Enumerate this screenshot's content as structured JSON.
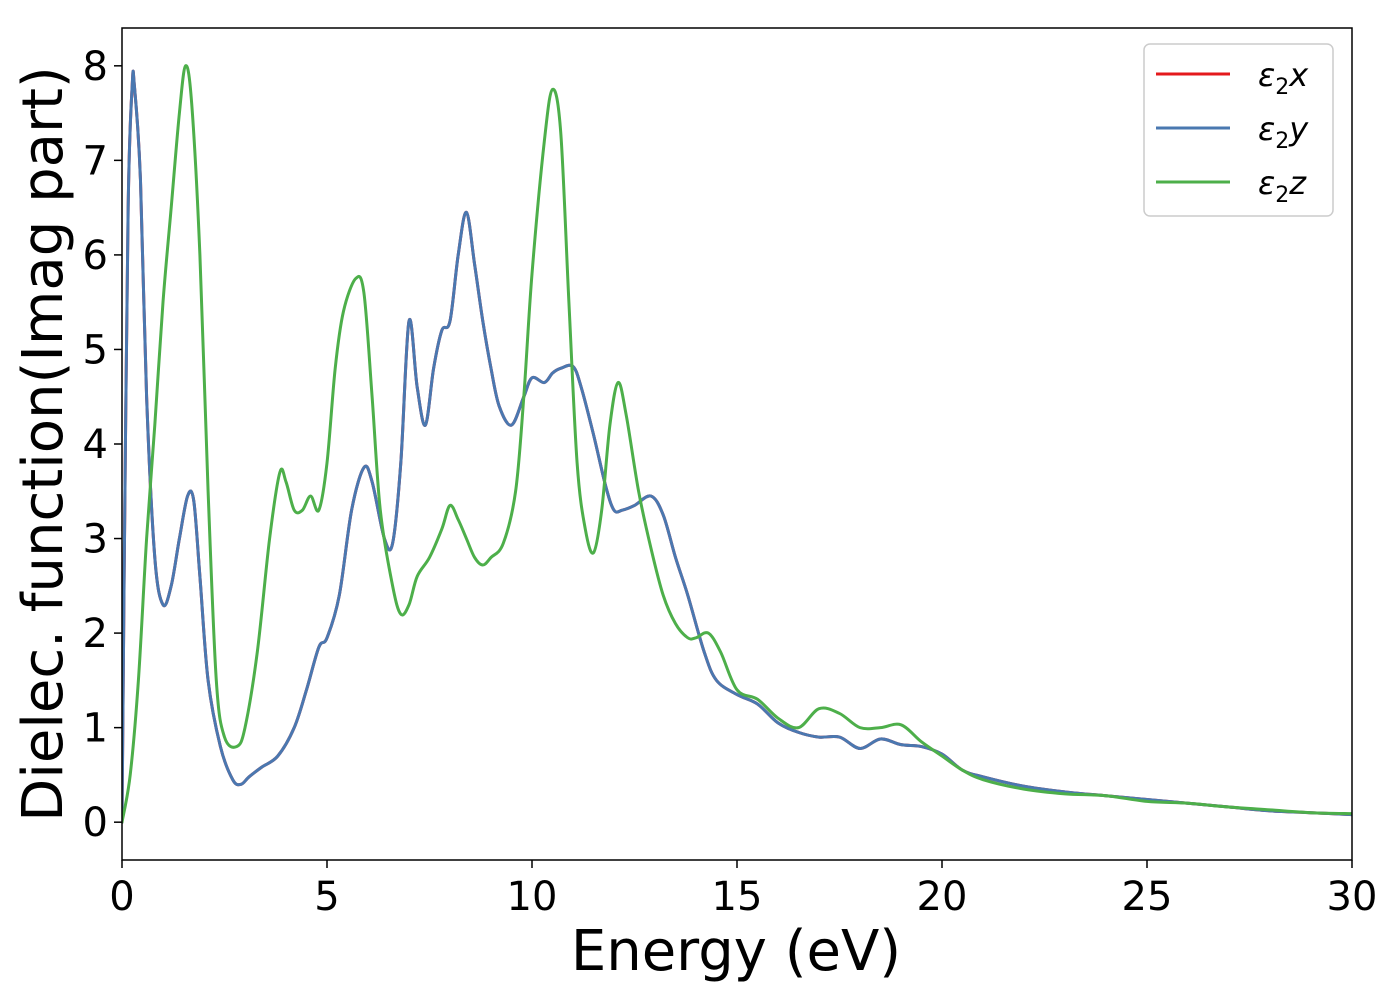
{
  "chart_data": {
    "type": "line",
    "title": "",
    "xlabel": "Energy (eV)",
    "ylabel": "Dielec. function(Imag part)",
    "xlim": [
      0,
      30
    ],
    "ylim": [
      -0.4,
      8.4
    ],
    "xticks": [
      0,
      5,
      10,
      15,
      20,
      25,
      30
    ],
    "yticks": [
      0,
      1,
      2,
      3,
      4,
      5,
      6,
      7,
      8
    ],
    "grid": false,
    "legend_position": "top-right",
    "series": [
      {
        "name": "ε2x",
        "legend": {
          "base": "ε",
          "sub": "2",
          "tail": "x"
        },
        "color": "#e41a1c",
        "x": [
          0,
          0.05,
          0.15,
          0.25,
          0.3,
          0.45,
          0.6,
          0.8,
          1.0,
          1.2,
          1.4,
          1.6,
          1.75,
          1.9,
          2.1,
          2.4,
          2.7,
          2.9,
          3.1,
          3.4,
          3.8,
          4.2,
          4.5,
          4.8,
          5.0,
          5.3,
          5.6,
          5.9,
          6.1,
          6.4,
          6.6,
          6.8,
          7.0,
          7.2,
          7.4,
          7.6,
          7.8,
          8.0,
          8.2,
          8.4,
          8.6,
          8.8,
          9.0,
          9.2,
          9.5,
          9.8,
          10.0,
          10.3,
          10.5,
          10.7,
          11.0,
          11.2,
          11.5,
          11.8,
          12.0,
          12.2,
          12.5,
          12.9,
          13.2,
          13.5,
          13.8,
          14.2,
          14.5,
          15.0,
          15.5,
          16.0,
          16.5,
          17.0,
          17.5,
          18.0,
          18.5,
          19.0,
          19.5,
          20.0,
          20.5,
          21.0,
          22.0,
          23.0,
          24.0,
          25.0,
          26.0,
          27.0,
          28.0,
          29.0,
          30.0
        ],
        "values": [
          0,
          2.5,
          6.5,
          7.8,
          7.8,
          6.8,
          4.5,
          2.8,
          2.3,
          2.5,
          3.0,
          3.45,
          3.4,
          2.6,
          1.5,
          0.8,
          0.45,
          0.4,
          0.48,
          0.58,
          0.7,
          1.0,
          1.4,
          1.85,
          1.95,
          2.4,
          3.3,
          3.75,
          3.6,
          3.0,
          2.95,
          3.8,
          5.3,
          4.6,
          4.2,
          4.8,
          5.2,
          5.3,
          6.0,
          6.45,
          5.9,
          5.3,
          4.8,
          4.4,
          4.2,
          4.5,
          4.7,
          4.65,
          4.75,
          4.8,
          4.82,
          4.6,
          4.1,
          3.55,
          3.3,
          3.3,
          3.35,
          3.45,
          3.25,
          2.8,
          2.4,
          1.8,
          1.5,
          1.35,
          1.25,
          1.05,
          0.95,
          0.9,
          0.9,
          0.78,
          0.88,
          0.82,
          0.8,
          0.72,
          0.55,
          0.48,
          0.38,
          0.32,
          0.28,
          0.24,
          0.2,
          0.16,
          0.12,
          0.1,
          0.08
        ]
      },
      {
        "name": "ε2y",
        "legend": {
          "base": "ε",
          "sub": "2",
          "tail": "y"
        },
        "color": "#4a78b0",
        "x": [
          0,
          0.05,
          0.15,
          0.25,
          0.3,
          0.45,
          0.6,
          0.8,
          1.0,
          1.2,
          1.4,
          1.6,
          1.75,
          1.9,
          2.1,
          2.4,
          2.7,
          2.9,
          3.1,
          3.4,
          3.8,
          4.2,
          4.5,
          4.8,
          5.0,
          5.3,
          5.6,
          5.9,
          6.1,
          6.4,
          6.6,
          6.8,
          7.0,
          7.2,
          7.4,
          7.6,
          7.8,
          8.0,
          8.2,
          8.4,
          8.6,
          8.8,
          9.0,
          9.2,
          9.5,
          9.8,
          10.0,
          10.3,
          10.5,
          10.7,
          11.0,
          11.2,
          11.5,
          11.8,
          12.0,
          12.2,
          12.5,
          12.9,
          13.2,
          13.5,
          13.8,
          14.2,
          14.5,
          15.0,
          15.5,
          16.0,
          16.5,
          17.0,
          17.5,
          18.0,
          18.5,
          19.0,
          19.5,
          20.0,
          20.5,
          21.0,
          22.0,
          23.0,
          24.0,
          25.0,
          26.0,
          27.0,
          28.0,
          29.0,
          30.0
        ],
        "values": [
          0,
          2.5,
          6.5,
          7.8,
          7.8,
          6.8,
          4.5,
          2.8,
          2.3,
          2.5,
          3.0,
          3.45,
          3.4,
          2.6,
          1.5,
          0.8,
          0.45,
          0.4,
          0.48,
          0.58,
          0.7,
          1.0,
          1.4,
          1.85,
          1.95,
          2.4,
          3.3,
          3.75,
          3.6,
          3.0,
          2.95,
          3.8,
          5.3,
          4.6,
          4.2,
          4.8,
          5.2,
          5.3,
          6.0,
          6.45,
          5.9,
          5.3,
          4.8,
          4.4,
          4.2,
          4.5,
          4.7,
          4.65,
          4.75,
          4.8,
          4.82,
          4.6,
          4.1,
          3.55,
          3.3,
          3.3,
          3.35,
          3.45,
          3.25,
          2.8,
          2.4,
          1.8,
          1.5,
          1.35,
          1.25,
          1.05,
          0.95,
          0.9,
          0.9,
          0.78,
          0.88,
          0.82,
          0.8,
          0.72,
          0.55,
          0.48,
          0.38,
          0.32,
          0.28,
          0.24,
          0.2,
          0.16,
          0.12,
          0.1,
          0.08
        ]
      },
      {
        "name": "ε2z",
        "legend": {
          "base": "ε",
          "sub": "2",
          "tail": "z"
        },
        "color": "#4daf4a",
        "x": [
          0,
          0.2,
          0.4,
          0.6,
          0.8,
          1.0,
          1.2,
          1.4,
          1.55,
          1.7,
          1.9,
          2.1,
          2.3,
          2.5,
          2.8,
          3.0,
          3.3,
          3.6,
          3.85,
          4.0,
          4.2,
          4.4,
          4.6,
          4.8,
          5.0,
          5.2,
          5.4,
          5.7,
          5.9,
          6.1,
          6.3,
          6.6,
          6.8,
          7.0,
          7.2,
          7.5,
          7.8,
          8.0,
          8.2,
          8.4,
          8.6,
          8.8,
          9.0,
          9.3,
          9.6,
          9.8,
          10.0,
          10.3,
          10.5,
          10.7,
          10.9,
          11.1,
          11.3,
          11.5,
          11.7,
          11.9,
          12.1,
          12.3,
          12.6,
          12.9,
          13.2,
          13.5,
          13.8,
          14.0,
          14.3,
          14.6,
          15.0,
          15.5,
          16.0,
          16.5,
          17.0,
          17.5,
          18.0,
          18.5,
          19.0,
          19.5,
          20.0,
          20.5,
          21.0,
          22.0,
          23.0,
          24.0,
          25.0,
          26.0,
          27.0,
          28.0,
          29.0,
          30.0
        ],
        "values": [
          0,
          0.5,
          1.5,
          3.0,
          4.2,
          5.5,
          6.5,
          7.5,
          8.0,
          7.6,
          6.0,
          3.5,
          1.5,
          0.9,
          0.8,
          1.0,
          1.8,
          3.0,
          3.7,
          3.6,
          3.3,
          3.3,
          3.45,
          3.3,
          3.8,
          4.8,
          5.4,
          5.75,
          5.6,
          4.5,
          3.3,
          2.5,
          2.2,
          2.3,
          2.6,
          2.8,
          3.1,
          3.35,
          3.2,
          3.0,
          2.8,
          2.72,
          2.8,
          2.95,
          3.5,
          4.5,
          5.8,
          7.2,
          7.75,
          7.3,
          5.5,
          3.8,
          3.1,
          2.85,
          3.3,
          4.2,
          4.65,
          4.3,
          3.5,
          2.9,
          2.4,
          2.1,
          1.95,
          1.95,
          2.0,
          1.8,
          1.4,
          1.3,
          1.1,
          1.0,
          1.2,
          1.15,
          1.0,
          1.0,
          1.03,
          0.85,
          0.7,
          0.55,
          0.45,
          0.35,
          0.3,
          0.28,
          0.22,
          0.2,
          0.16,
          0.13,
          0.1,
          0.09
        ]
      }
    ]
  }
}
